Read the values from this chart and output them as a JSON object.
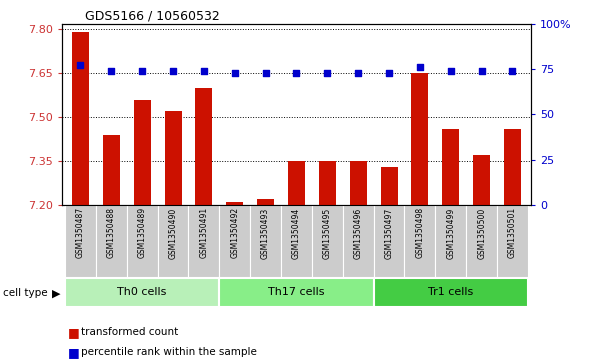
{
  "title": "GDS5166 / 10560532",
  "samples": [
    "GSM1350487",
    "GSM1350488",
    "GSM1350489",
    "GSM1350490",
    "GSM1350491",
    "GSM1350492",
    "GSM1350493",
    "GSM1350494",
    "GSM1350495",
    "GSM1350496",
    "GSM1350497",
    "GSM1350498",
    "GSM1350499",
    "GSM1350500",
    "GSM1350501"
  ],
  "transformed_count": [
    7.79,
    7.44,
    7.56,
    7.52,
    7.6,
    7.21,
    7.22,
    7.35,
    7.35,
    7.35,
    7.33,
    7.65,
    7.46,
    7.37,
    7.46
  ],
  "percentile_rank": [
    77,
    74,
    74,
    74,
    74,
    73,
    73,
    73,
    73,
    73,
    73,
    76,
    74,
    74,
    74
  ],
  "cell_type_groups": [
    {
      "label": "Th0 cells",
      "start": 0,
      "end": 5,
      "color": "#b8f0b8"
    },
    {
      "label": "Th17 cells",
      "start": 5,
      "end": 10,
      "color": "#88ee88"
    },
    {
      "label": "Tr1 cells",
      "start": 10,
      "end": 15,
      "color": "#44cc44"
    }
  ],
  "ylim_left": [
    7.2,
    7.82
  ],
  "ylim_right": [
    0,
    100
  ],
  "yticks_left": [
    7.2,
    7.35,
    7.5,
    7.65,
    7.8
  ],
  "yticks_right": [
    0,
    25,
    50,
    75,
    100
  ],
  "bar_color": "#cc1100",
  "dot_color": "#0000cc",
  "bar_bottom": 7.2,
  "label_bg_color": "#cccccc",
  "legend_labels": [
    "transformed count",
    "percentile rank within the sample"
  ],
  "legend_colors": [
    "#cc1100",
    "#0000cc"
  ],
  "left_tick_color": "#cc3333",
  "right_tick_color": "#0000cc"
}
